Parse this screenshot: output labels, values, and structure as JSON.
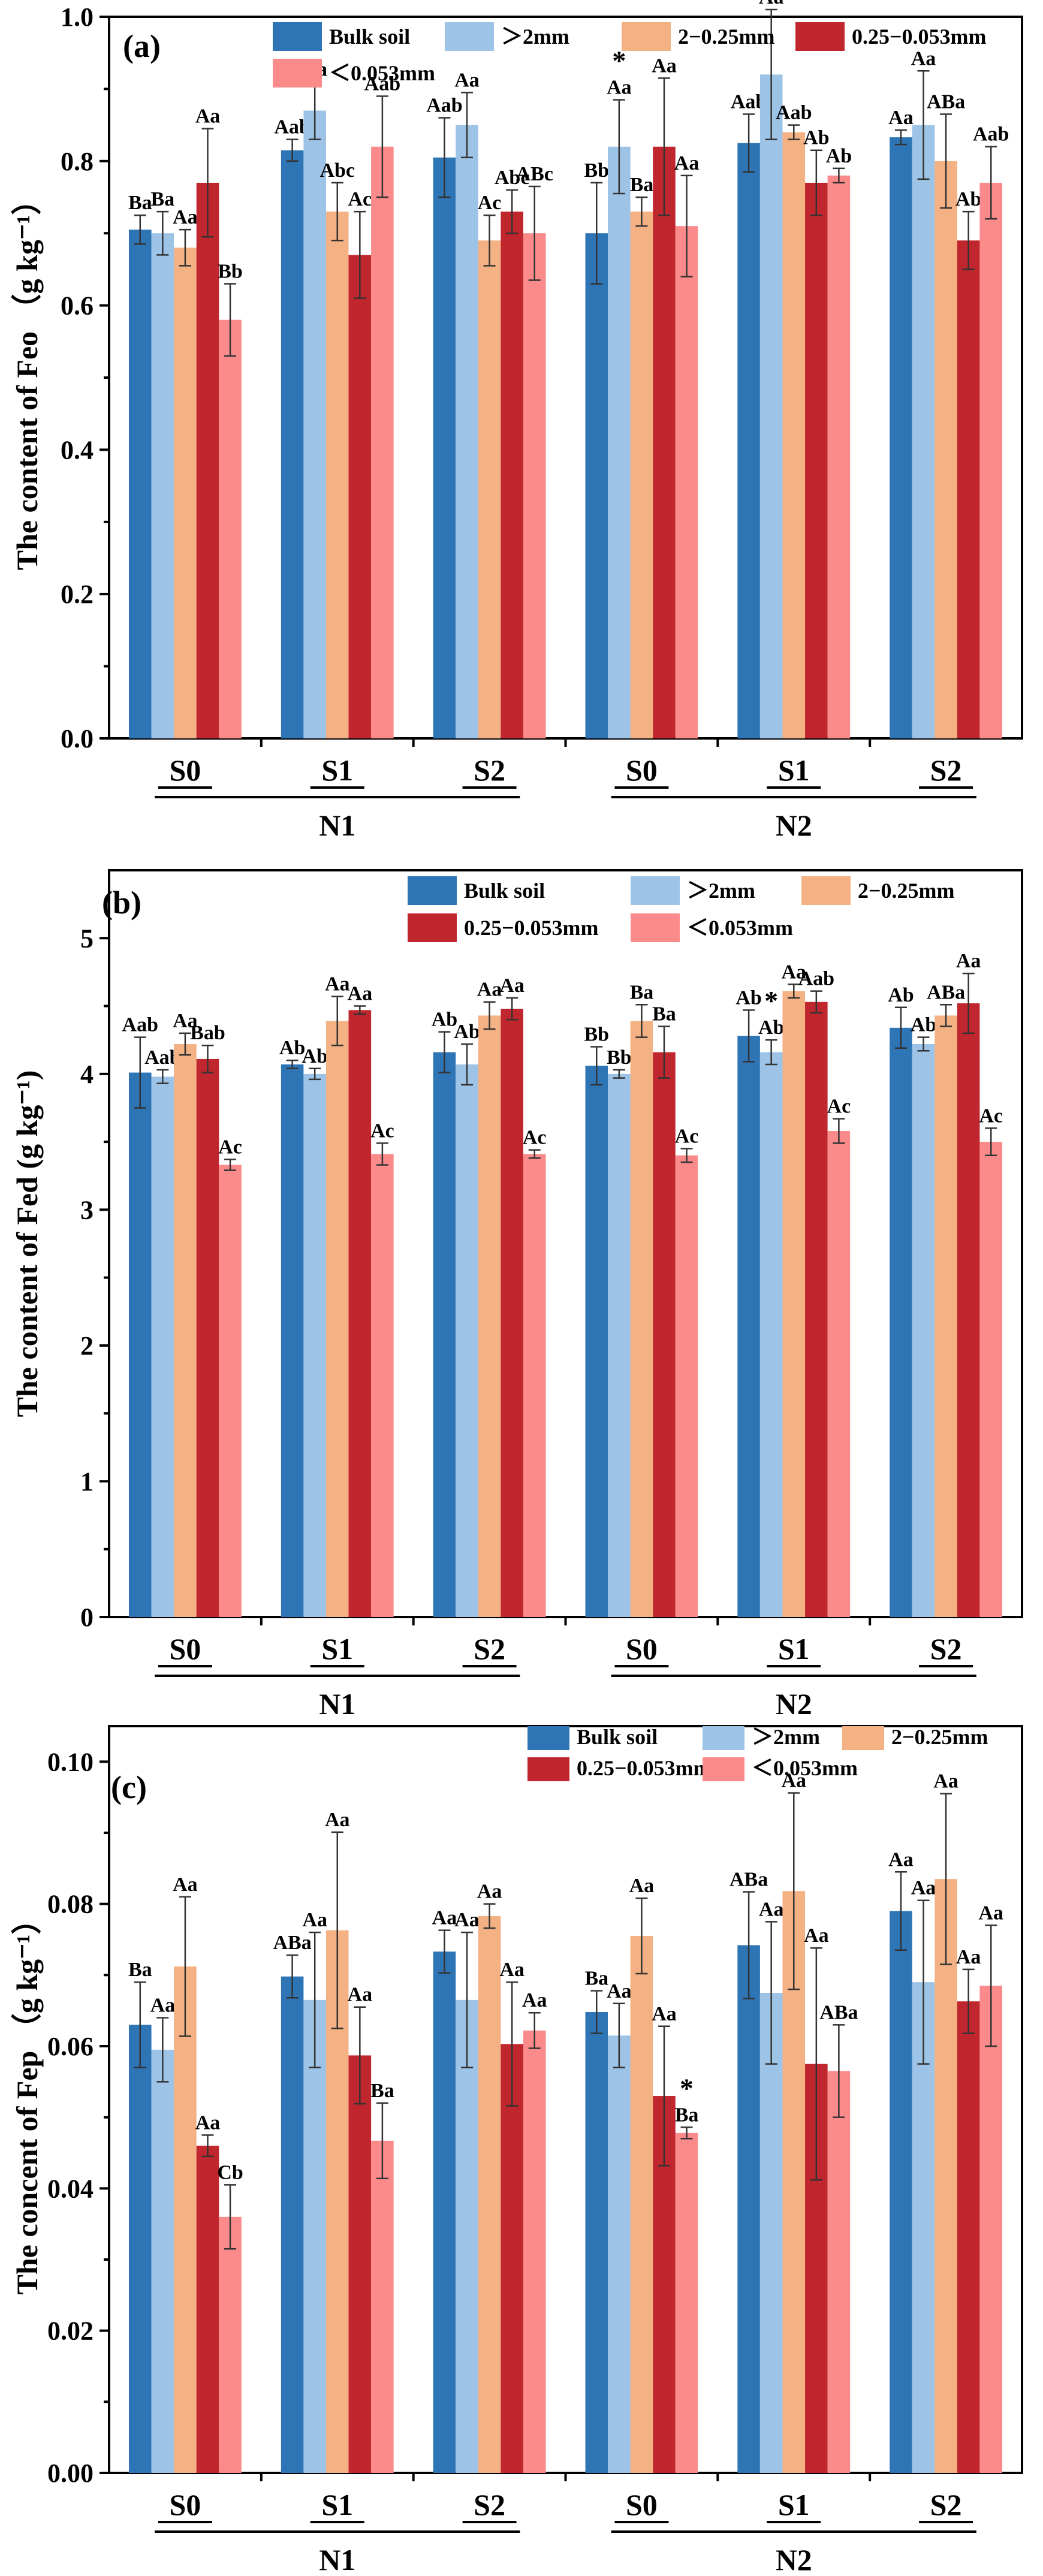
{
  "colors": {
    "bulk": "#2e75b6",
    "gt2": "#9dc3e6",
    "mid": "#f4b183",
    "small": "#c0262d",
    "lt": "#fb8a8a"
  },
  "chart_data": [
    {
      "type": "bar",
      "panel_label": "(a)",
      "ylabel": "The content of Feo （g kg⁻¹）",
      "ylim": [
        0,
        1.0
      ],
      "yticks": [
        "0.0",
        "0.2",
        "0.4",
        "0.6",
        "0.8",
        "1.0"
      ],
      "ytick_values": [
        0,
        0.2,
        0.4,
        0.6,
        0.8,
        1.0
      ],
      "categories": [
        "S0",
        "S1",
        "S2",
        "S0",
        "S1",
        "S2"
      ],
      "groups": [
        "N1",
        "N2"
      ],
      "legend": [
        "Bulk soil",
        "＞2mm",
        "2−0.25mm",
        "0.25−0.053mm",
        "＜0.053mm"
      ],
      "series": [
        {
          "name": "Bulk soil",
          "values": [
            0.705,
            0.815,
            0.805,
            0.7,
            0.825,
            0.833
          ],
          "errors": [
            0.02,
            0.015,
            0.055,
            0.07,
            0.04,
            0.01
          ],
          "labels": [
            "Ba",
            "Aab",
            "Aab",
            "Bb",
            "Aab",
            "Aa"
          ]
        },
        {
          "name": "＞2mm",
          "values": [
            0.7,
            0.87,
            0.85,
            0.82,
            0.92,
            0.85
          ],
          "errors": [
            0.03,
            0.04,
            0.045,
            0.065,
            0.09,
            0.075
          ],
          "labels": [
            "Ba",
            "Aa",
            "Aa",
            "Aa",
            "Aa",
            "Aa"
          ]
        },
        {
          "name": "2−0.25mm",
          "values": [
            0.68,
            0.73,
            0.69,
            0.73,
            0.84,
            0.8
          ],
          "errors": [
            0.025,
            0.04,
            0.035,
            0.02,
            0.01,
            0.065
          ],
          "labels": [
            "Aa",
            "Abc",
            "Ac",
            "Ba",
            "Aab",
            "ABa"
          ]
        },
        {
          "name": "0.25−0.053mm",
          "values": [
            0.77,
            0.67,
            0.73,
            0.82,
            0.77,
            0.69
          ],
          "errors": [
            0.075,
            0.06,
            0.03,
            0.095,
            0.045,
            0.04
          ],
          "labels": [
            "Aa",
            "Ac",
            "Abc",
            "Aa",
            "Ab",
            "Ab"
          ]
        },
        {
          "name": "＜0.053mm",
          "values": [
            0.58,
            0.82,
            0.7,
            0.71,
            0.78,
            0.77
          ],
          "errors": [
            0.05,
            0.07,
            0.065,
            0.07,
            0.01,
            0.05
          ],
          "labels": [
            "Bb",
            "Aab",
            "ABc",
            "Aa",
            "Ab",
            "Aab"
          ]
        }
      ],
      "stars": [
        {
          "category": 3,
          "series": 1
        },
        {
          "category": 4,
          "series": 1
        }
      ]
    },
    {
      "type": "bar",
      "panel_label": "(b)",
      "ylabel": "The content of Fed (g kg⁻¹)",
      "ylim": [
        0,
        5.5
      ],
      "yticks": [
        "0",
        "1",
        "2",
        "3",
        "4",
        "5"
      ],
      "ytick_values": [
        0,
        1,
        2,
        3,
        4,
        5
      ],
      "categories": [
        "S0",
        "S1",
        "S2",
        "S0",
        "S1",
        "S2"
      ],
      "groups": [
        "N1",
        "N2"
      ],
      "legend": [
        "Bulk soil",
        "＞2mm",
        "2−0.25mm",
        "0.25−0.053mm",
        "＜0.053mm"
      ],
      "series": [
        {
          "name": "Bulk soil",
          "values": [
            4.01,
            4.07,
            4.16,
            4.06,
            4.28,
            4.34
          ],
          "errors": [
            0.26,
            0.03,
            0.15,
            0.14,
            0.19,
            0.15
          ],
          "labels": [
            "Aab",
            "Ab",
            "Ab",
            "Bb",
            "Ab",
            "Ab"
          ]
        },
        {
          "name": "＞2mm",
          "values": [
            3.98,
            4.0,
            4.07,
            4.0,
            4.16,
            4.22
          ],
          "errors": [
            0.05,
            0.04,
            0.15,
            0.03,
            0.09,
            0.05
          ],
          "labels": [
            "Aab",
            "Ab",
            "Ab",
            "Bb",
            "Ab",
            "Ab"
          ]
        },
        {
          "name": "2−0.25mm",
          "values": [
            4.22,
            4.39,
            4.43,
            4.39,
            4.61,
            4.43
          ],
          "errors": [
            0.08,
            0.18,
            0.1,
            0.12,
            0.05,
            0.08
          ],
          "labels": [
            "Aa",
            "Aa",
            "Aa",
            "Ba",
            "Aa",
            "ABa"
          ]
        },
        {
          "name": "0.25−0.053mm",
          "values": [
            4.11,
            4.47,
            4.48,
            4.16,
            4.53,
            4.52
          ],
          "errors": [
            0.1,
            0.03,
            0.08,
            0.19,
            0.08,
            0.22
          ],
          "labels": [
            "Bab",
            "Aa",
            "Aa",
            "Ba",
            "Aab",
            "Aa"
          ]
        },
        {
          "name": "＜0.053mm",
          "values": [
            3.33,
            3.41,
            3.41,
            3.4,
            3.58,
            3.5
          ],
          "errors": [
            0.04,
            0.08,
            0.03,
            0.05,
            0.09,
            0.1
          ],
          "labels": [
            "Ac",
            "Ac",
            "Ac",
            "Ac",
            "Ac",
            "Ac"
          ]
        }
      ],
      "stars": [
        {
          "category": 4,
          "series": 1
        }
      ]
    },
    {
      "type": "bar",
      "panel_label": "(c)",
      "ylabel": "The concent of Fep （g kg⁻¹）",
      "ylim": [
        0,
        0.105
      ],
      "yticks": [
        "0.00",
        "0.02",
        "0.04",
        "0.06",
        "0.08",
        "0.10"
      ],
      "ytick_values": [
        0,
        0.02,
        0.04,
        0.06,
        0.08,
        0.1
      ],
      "categories": [
        "S0",
        "S1",
        "S2",
        "S0",
        "S1",
        "S2"
      ],
      "groups": [
        "N1",
        "N2"
      ],
      "legend": [
        "Bulk soil",
        "＞2mm",
        "2−0.25mm",
        "0.25−0.053mm",
        "＜0.053mm"
      ],
      "series": [
        {
          "name": "Bulk soil",
          "values": [
            0.063,
            0.0698,
            0.0733,
            0.0648,
            0.0742,
            0.079
          ],
          "errors": [
            0.006,
            0.003,
            0.003,
            0.003,
            0.0075,
            0.0055
          ],
          "labels": [
            "Ba",
            "ABa",
            "Aa",
            "Ba",
            "ABa",
            "Aa"
          ]
        },
        {
          "name": "＞2mm",
          "values": [
            0.0595,
            0.0665,
            0.0665,
            0.0615,
            0.0675,
            0.069
          ],
          "errors": [
            0.0045,
            0.0095,
            0.0095,
            0.0045,
            0.01,
            0.0115
          ],
          "labels": [
            "Aa",
            "Aa",
            "Aa",
            "Aa",
            "Aa",
            "Aa"
          ]
        },
        {
          "name": "2−0.25mm",
          "values": [
            0.0712,
            0.0763,
            0.0783,
            0.0755,
            0.0818,
            0.0835
          ],
          "errors": [
            0.0098,
            0.0138,
            0.0017,
            0.0053,
            0.0138,
            0.012
          ],
          "labels": [
            "Aa",
            "Aa",
            "Aa",
            "Aa",
            "Aa",
            "Aa"
          ]
        },
        {
          "name": "0.25−0.053mm",
          "values": [
            0.046,
            0.0587,
            0.0603,
            0.053,
            0.0575,
            0.0663
          ],
          "errors": [
            0.0015,
            0.0068,
            0.0087,
            0.0098,
            0.0163,
            0.0045
          ],
          "labels": [
            "Aa",
            "Aa",
            "Aa",
            "Aa",
            "Aa",
            "Aa"
          ]
        },
        {
          "name": "＜0.053mm",
          "values": [
            0.036,
            0.0467,
            0.0622,
            0.0478,
            0.0565,
            0.0685
          ],
          "errors": [
            0.0045,
            0.0053,
            0.0025,
            0.0008,
            0.0065,
            0.0085
          ],
          "labels": [
            "Cb",
            "Ba",
            "Aa",
            "Ba",
            "ABa",
            "Aa"
          ]
        }
      ],
      "stars": [
        {
          "category": 3,
          "series": 4
        }
      ]
    }
  ]
}
